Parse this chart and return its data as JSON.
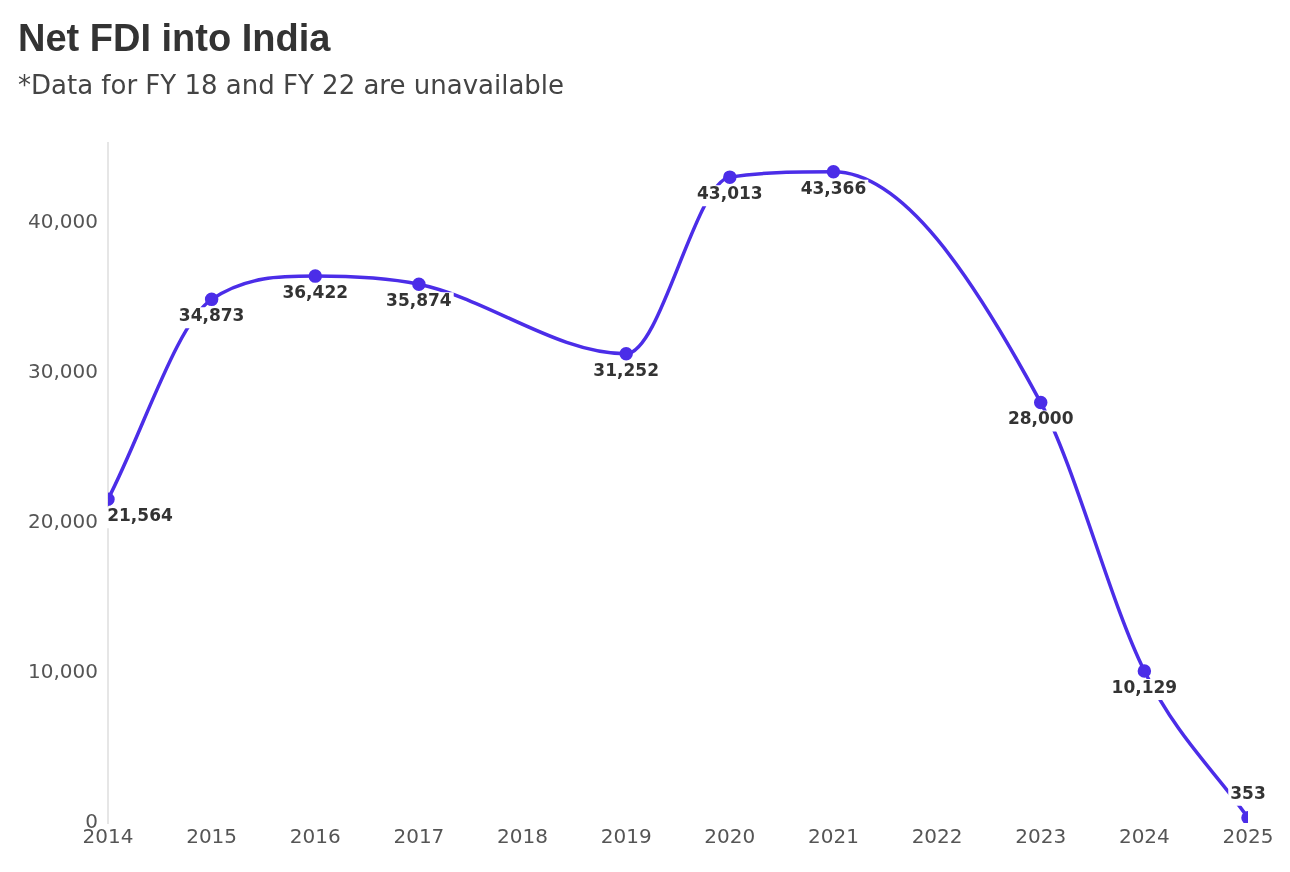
{
  "chart_data": {
    "type": "line",
    "title": "Net FDI into India",
    "subtitle": "*Data for FY 18 and FY 22 are unavailable",
    "x": [
      2014,
      2015,
      2016,
      2017,
      2019,
      2020,
      2021,
      2023,
      2024,
      2025
    ],
    "series": [
      {
        "color": "#4b2de8",
        "values": [
          21564,
          34873,
          36422,
          35874,
          31252,
          43013,
          43366,
          28000,
          10129,
          353
        ],
        "value_labels": [
          "21,564",
          "34,873",
          "36,422",
          "35,874",
          "31,252",
          "43,013",
          "43,366",
          "28,000",
          "10,129",
          "353"
        ]
      }
    ],
    "xlim": [
      2014,
      2025
    ],
    "xticks": [
      2014,
      2015,
      2016,
      2017,
      2018,
      2019,
      2020,
      2021,
      2022,
      2023,
      2024,
      2025
    ],
    "ylim": [
      0,
      45300
    ],
    "yticks": [
      {
        "value": 0,
        "label": "0"
      },
      {
        "value": 10000,
        "label": "10,000"
      },
      {
        "value": 20000,
        "label": "20,000"
      },
      {
        "value": 30000,
        "label": "30,000"
      },
      {
        "value": 40000,
        "label": "40,000"
      }
    ],
    "grid": false,
    "legend": false,
    "marker": "circle",
    "line_style": "solid"
  }
}
